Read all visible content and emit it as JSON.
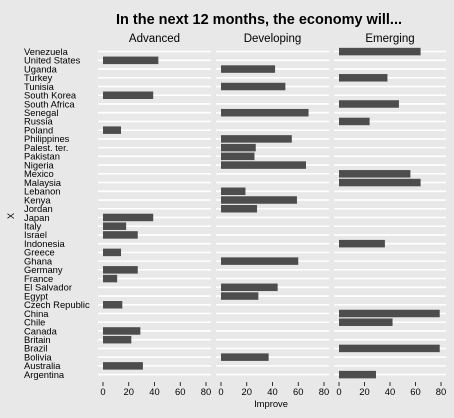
{
  "chart_data": {
    "type": "bar",
    "orientation": "horizontal",
    "title": "In the next 12 months, the economy will...",
    "xlabel": "Improve",
    "ylabel": "X",
    "xlim": [
      0,
      80
    ],
    "xticks": [
      "0",
      "20",
      "40",
      "60",
      "80"
    ],
    "grid": true,
    "bar_color": "#4d4d4d",
    "background": "#e8e8e8",
    "categories": [
      "Venezuela",
      "United States",
      "Uganda",
      "Turkey",
      "Tunisia",
      "South Korea",
      "South Africa",
      "Senegal",
      "Russia",
      "Poland",
      "Philippines",
      "Palest. ter.",
      "Pakistan",
      "Nigeria",
      "Mexico",
      "Malaysia",
      "Lebanon",
      "Kenya",
      "Jordan",
      "Japan",
      "Italy",
      "Israel",
      "Indonesia",
      "Greece",
      "Ghana",
      "Germany",
      "France",
      "El Salvador",
      "Egypt",
      "Czech Republic",
      "China",
      "Chile",
      "Canada",
      "Britain",
      "Brazil",
      "Bolivia",
      "Australia",
      "Argentina"
    ],
    "series": [
      {
        "name": "Advanced",
        "values": {
          "United States": 43,
          "South Korea": 39,
          "Poland": 14,
          "Japan": 39,
          "Italy": 18,
          "Israel": 27,
          "Greece": 14,
          "Germany": 27,
          "France": 11,
          "Czech Republic": 15,
          "Canada": 29,
          "Britain": 22,
          "Australia": 31
        }
      },
      {
        "name": "Developing",
        "values": {
          "Uganda": 42,
          "Tunisia": 50,
          "Senegal": 68,
          "Philippines": 55,
          "Palest. ter.": 27,
          "Pakistan": 26,
          "Nigeria": 66,
          "Lebanon": 19,
          "Kenya": 59,
          "Jordan": 28,
          "Ghana": 60,
          "El Salvador": 44,
          "Egypt": 29,
          "Bolivia": 37
        }
      },
      {
        "name": "Emerging",
        "values": {
          "Venezuela": 64,
          "Turkey": 38,
          "South Africa": 47,
          "Russia": 24,
          "Mexico": 56,
          "Malaysia": 64,
          "Indonesia": 36,
          "China": 79,
          "Chile": 42,
          "Brazil": 79,
          "Argentina": 29
        }
      }
    ]
  }
}
